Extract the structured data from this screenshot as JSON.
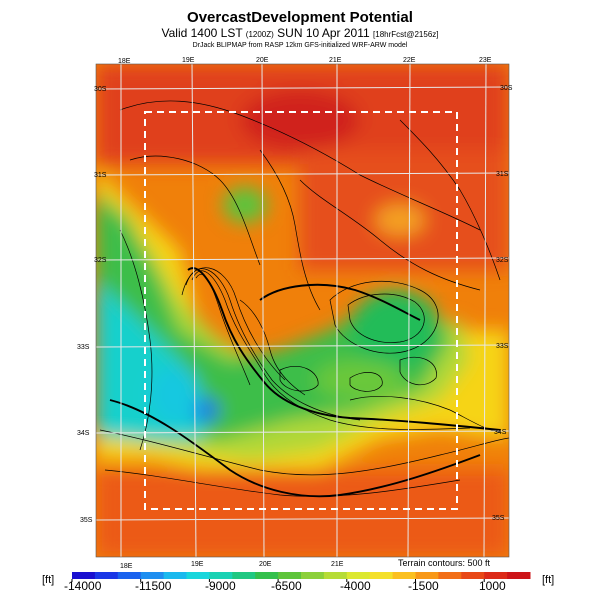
{
  "title": {
    "main": "OvercastDevelopment Potential",
    "valid_a": "Valid 1400 LST",
    "valid_b": "(1200Z)",
    "valid_c": "SUN 10 Apr 2011",
    "valid_d": "[18hrFcst@2156z]",
    "credit": "DrJack BLIPMAP from RASP 12km GFS-initialized WRF-ARW model"
  },
  "map": {
    "lon_top": [
      "18E",
      "19E",
      "20E",
      "21E",
      "22E",
      "23E"
    ],
    "lon_bottom": [
      "18E",
      "19E",
      "20E",
      "21E"
    ],
    "lat_left": [
      "30S",
      "31S",
      "32S",
      "33S",
      "34S",
      "35S"
    ],
    "lat_right": [
      "30S",
      "31S",
      "32S",
      "33S",
      "34S",
      "35S"
    ]
  },
  "colorbar": {
    "unit_left": "[ft]",
    "unit_right": "[ft]",
    "tick_labels": [
      "-14000",
      "-11500",
      "-9000",
      "-6500",
      "-4000",
      "-1500",
      "1000"
    ],
    "colors": [
      "#1a10d0",
      "#1a37e6",
      "#1a62ee",
      "#1e8ef0",
      "#1ab9ee",
      "#18d6dc",
      "#1ad2b4",
      "#20c882",
      "#34c04c",
      "#5ec43a",
      "#8cd03a",
      "#b6dc36",
      "#dce830",
      "#f4e02a",
      "#fbc020",
      "#f89818",
      "#f26e16",
      "#e84816",
      "#dc2a18",
      "#cc1418"
    ]
  },
  "terrain_note": "Terrain contours: 500 ft"
}
